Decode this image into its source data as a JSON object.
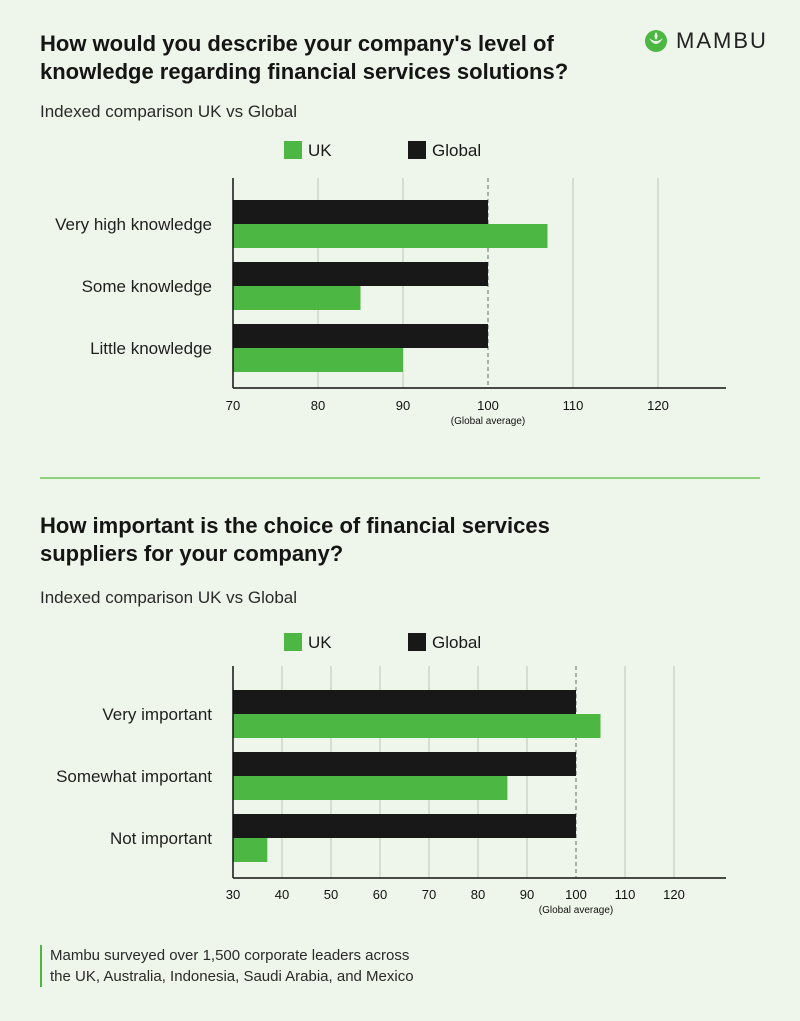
{
  "brand": {
    "name": "MAMBU",
    "green": "#4cb843",
    "dark": "#181818"
  },
  "chart_data": [
    {
      "type": "bar",
      "orientation": "horizontal",
      "title": [
        "How would you describe your company's level of",
        "knowledge regarding financial services solutions?"
      ],
      "subtitle": "Indexed comparison UK vs Global",
      "legend": [
        {
          "name": "UK",
          "color": "#4cb843"
        },
        {
          "name": "Global",
          "color": "#181818"
        }
      ],
      "categories": [
        "Very high knowledge",
        "Some knowledge",
        "Little knowledge"
      ],
      "series": [
        {
          "name": "Global",
          "values": [
            100,
            100,
            100
          ]
        },
        {
          "name": "UK",
          "values": [
            107,
            85,
            90
          ]
        }
      ],
      "xlim": [
        70,
        128
      ],
      "xticks": [
        70,
        80,
        90,
        100,
        110,
        120
      ],
      "reference": {
        "value": 100,
        "label": "(Global average)"
      },
      "grid": true
    },
    {
      "type": "bar",
      "orientation": "horizontal",
      "title": [
        "How important is the choice of financial services",
        "suppliers for your company?"
      ],
      "subtitle": "Indexed comparison UK vs Global",
      "legend": [
        {
          "name": "UK",
          "color": "#4cb843"
        },
        {
          "name": "Global",
          "color": "#181818"
        }
      ],
      "categories": [
        "Very important",
        "Somewhat important",
        "Not important"
      ],
      "series": [
        {
          "name": "Global",
          "values": [
            100,
            100,
            100
          ]
        },
        {
          "name": "UK",
          "values": [
            105,
            86,
            37
          ]
        }
      ],
      "xlim": [
        30,
        130
      ],
      "xticks": [
        30,
        40,
        50,
        60,
        70,
        80,
        90,
        100,
        110,
        120
      ],
      "reference": {
        "value": 100,
        "label": "(Global average)"
      },
      "grid": true
    }
  ],
  "footnote": {
    "line1": "Mambu surveyed over 1,500 corporate leaders across",
    "line2": "the UK, Australia, Indonesia, Saudi Arabia, and Mexico"
  }
}
